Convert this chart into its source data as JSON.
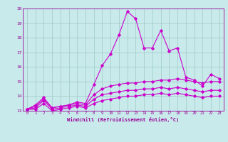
{
  "xlabel": "Windchill (Refroidissement éolien,°C)",
  "ylabel": "",
  "x_values": [
    0,
    1,
    2,
    3,
    4,
    5,
    6,
    7,
    8,
    9,
    10,
    11,
    12,
    13,
    14,
    15,
    16,
    17,
    18,
    19,
    20,
    21,
    22,
    23
  ],
  "series": [
    [
      13.1,
      13.4,
      13.9,
      13.2,
      13.3,
      13.4,
      13.6,
      13.5,
      14.8,
      16.1,
      16.9,
      18.2,
      19.8,
      19.3,
      17.3,
      17.3,
      18.5,
      17.1,
      17.3,
      15.3,
      15.1,
      14.7,
      15.5,
      15.2
    ],
    [
      13.1,
      13.3,
      13.8,
      13.2,
      13.3,
      13.4,
      13.5,
      13.4,
      14.1,
      14.5,
      14.7,
      14.8,
      14.9,
      14.9,
      15.0,
      15.0,
      15.1,
      15.1,
      15.2,
      15.1,
      15.0,
      14.9,
      15.0,
      15.0
    ],
    [
      13.1,
      13.2,
      13.7,
      13.1,
      13.2,
      13.3,
      13.4,
      13.3,
      13.8,
      14.1,
      14.2,
      14.3,
      14.4,
      14.4,
      14.5,
      14.5,
      14.6,
      14.5,
      14.6,
      14.5,
      14.4,
      14.3,
      14.4,
      14.4
    ],
    [
      13.1,
      13.1,
      13.5,
      13.0,
      13.1,
      13.2,
      13.3,
      13.2,
      13.5,
      13.7,
      13.8,
      13.9,
      14.0,
      14.0,
      14.1,
      14.1,
      14.2,
      14.1,
      14.2,
      14.1,
      14.0,
      13.9,
      14.0,
      14.0
    ]
  ],
  "line_color": "#cc00cc",
  "bg_color": "#c8eaea",
  "grid_color": "#9ec8c8",
  "text_color": "#990099",
  "ylim": [
    13,
    20
  ],
  "xlim": [
    -0.5,
    23.5
  ],
  "yticks": [
    13,
    14,
    15,
    16,
    17,
    18,
    19,
    20
  ],
  "xticks": [
    0,
    1,
    2,
    3,
    4,
    5,
    6,
    7,
    8,
    9,
    10,
    11,
    12,
    13,
    14,
    15,
    16,
    17,
    18,
    19,
    20,
    21,
    22,
    23
  ]
}
